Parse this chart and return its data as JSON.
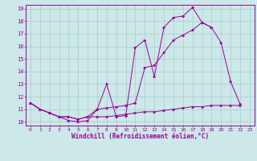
{
  "xlabel": "Windchill (Refroidissement éolien,°C)",
  "bg_color": "#cce8e8",
  "grid_color": "#aacccc",
  "line_color": "#990099",
  "xlim": [
    -0.5,
    23.5
  ],
  "ylim": [
    9.7,
    19.3
  ],
  "xticks": [
    0,
    1,
    2,
    3,
    4,
    5,
    6,
    7,
    8,
    9,
    10,
    11,
    12,
    13,
    14,
    15,
    16,
    17,
    18,
    19,
    20,
    21,
    22,
    23
  ],
  "yticks": [
    10,
    11,
    12,
    13,
    14,
    15,
    16,
    17,
    18,
    19
  ],
  "line1_y": [
    11.5,
    11.0,
    10.7,
    10.4,
    10.1,
    10.0,
    10.1,
    11.0,
    13.0,
    10.4,
    10.5,
    15.9,
    16.5,
    13.6,
    17.5,
    18.3,
    18.4,
    19.1,
    17.9,
    17.5,
    16.3,
    13.2,
    11.4,
    null
  ],
  "line2_y": [
    11.5,
    11.0,
    10.7,
    10.4,
    10.4,
    10.2,
    10.4,
    11.0,
    11.1,
    11.2,
    11.3,
    11.5,
    14.3,
    14.5,
    15.5,
    16.5,
    16.9,
    17.3,
    17.9,
    17.5,
    null,
    null,
    null,
    null
  ],
  "line3_y": [
    11.5,
    11.0,
    10.7,
    10.4,
    10.4,
    10.2,
    10.4,
    10.4,
    10.4,
    10.5,
    10.6,
    10.7,
    10.8,
    10.8,
    10.9,
    11.0,
    11.1,
    11.2,
    11.2,
    11.3,
    11.3,
    11.3,
    11.3,
    null
  ]
}
